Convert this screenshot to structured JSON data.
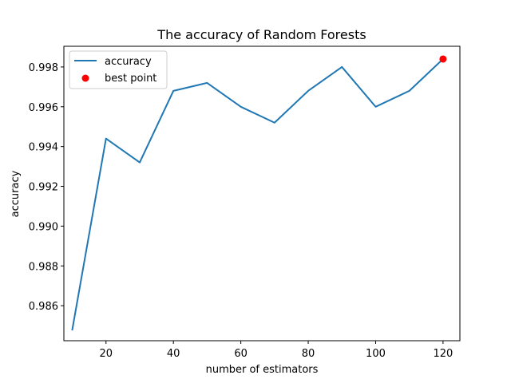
{
  "chart_data": {
    "type": "line",
    "title": "The accuracy of Random Forests",
    "xlabel": "number of estimators",
    "ylabel": "accuracy",
    "xlim": [
      7.5,
      125.0
    ],
    "ylim": [
      0.98424,
      0.99904
    ],
    "x_ticks": [
      20,
      40,
      60,
      80,
      100,
      120
    ],
    "y_ticks": [
      0.986,
      0.988,
      0.99,
      0.992,
      0.994,
      0.996,
      0.998
    ],
    "x_tick_labels": [
      "20",
      "40",
      "60",
      "80",
      100,
      "120"
    ],
    "y_tick_labels": [
      "0.986",
      "0.988",
      "0.990",
      "0.992",
      "0.994",
      "0.996",
      "0.998"
    ],
    "grid": false,
    "legend_position": "top-left",
    "series": [
      {
        "name": "accuracy",
        "kind": "line",
        "color": "#1f77b4",
        "x": [
          10,
          20,
          30,
          40,
          50,
          60,
          70,
          80,
          90,
          100,
          110,
          120
        ],
        "y": [
          0.9848,
          0.9944,
          0.9932,
          0.9968,
          0.9972,
          0.996,
          0.9952,
          0.9968,
          0.998,
          0.996,
          0.9968,
          0.9984
        ]
      },
      {
        "name": "best point",
        "kind": "scatter",
        "color": "#ff0000",
        "x": [
          120
        ],
        "y": [
          0.9984
        ]
      }
    ]
  }
}
